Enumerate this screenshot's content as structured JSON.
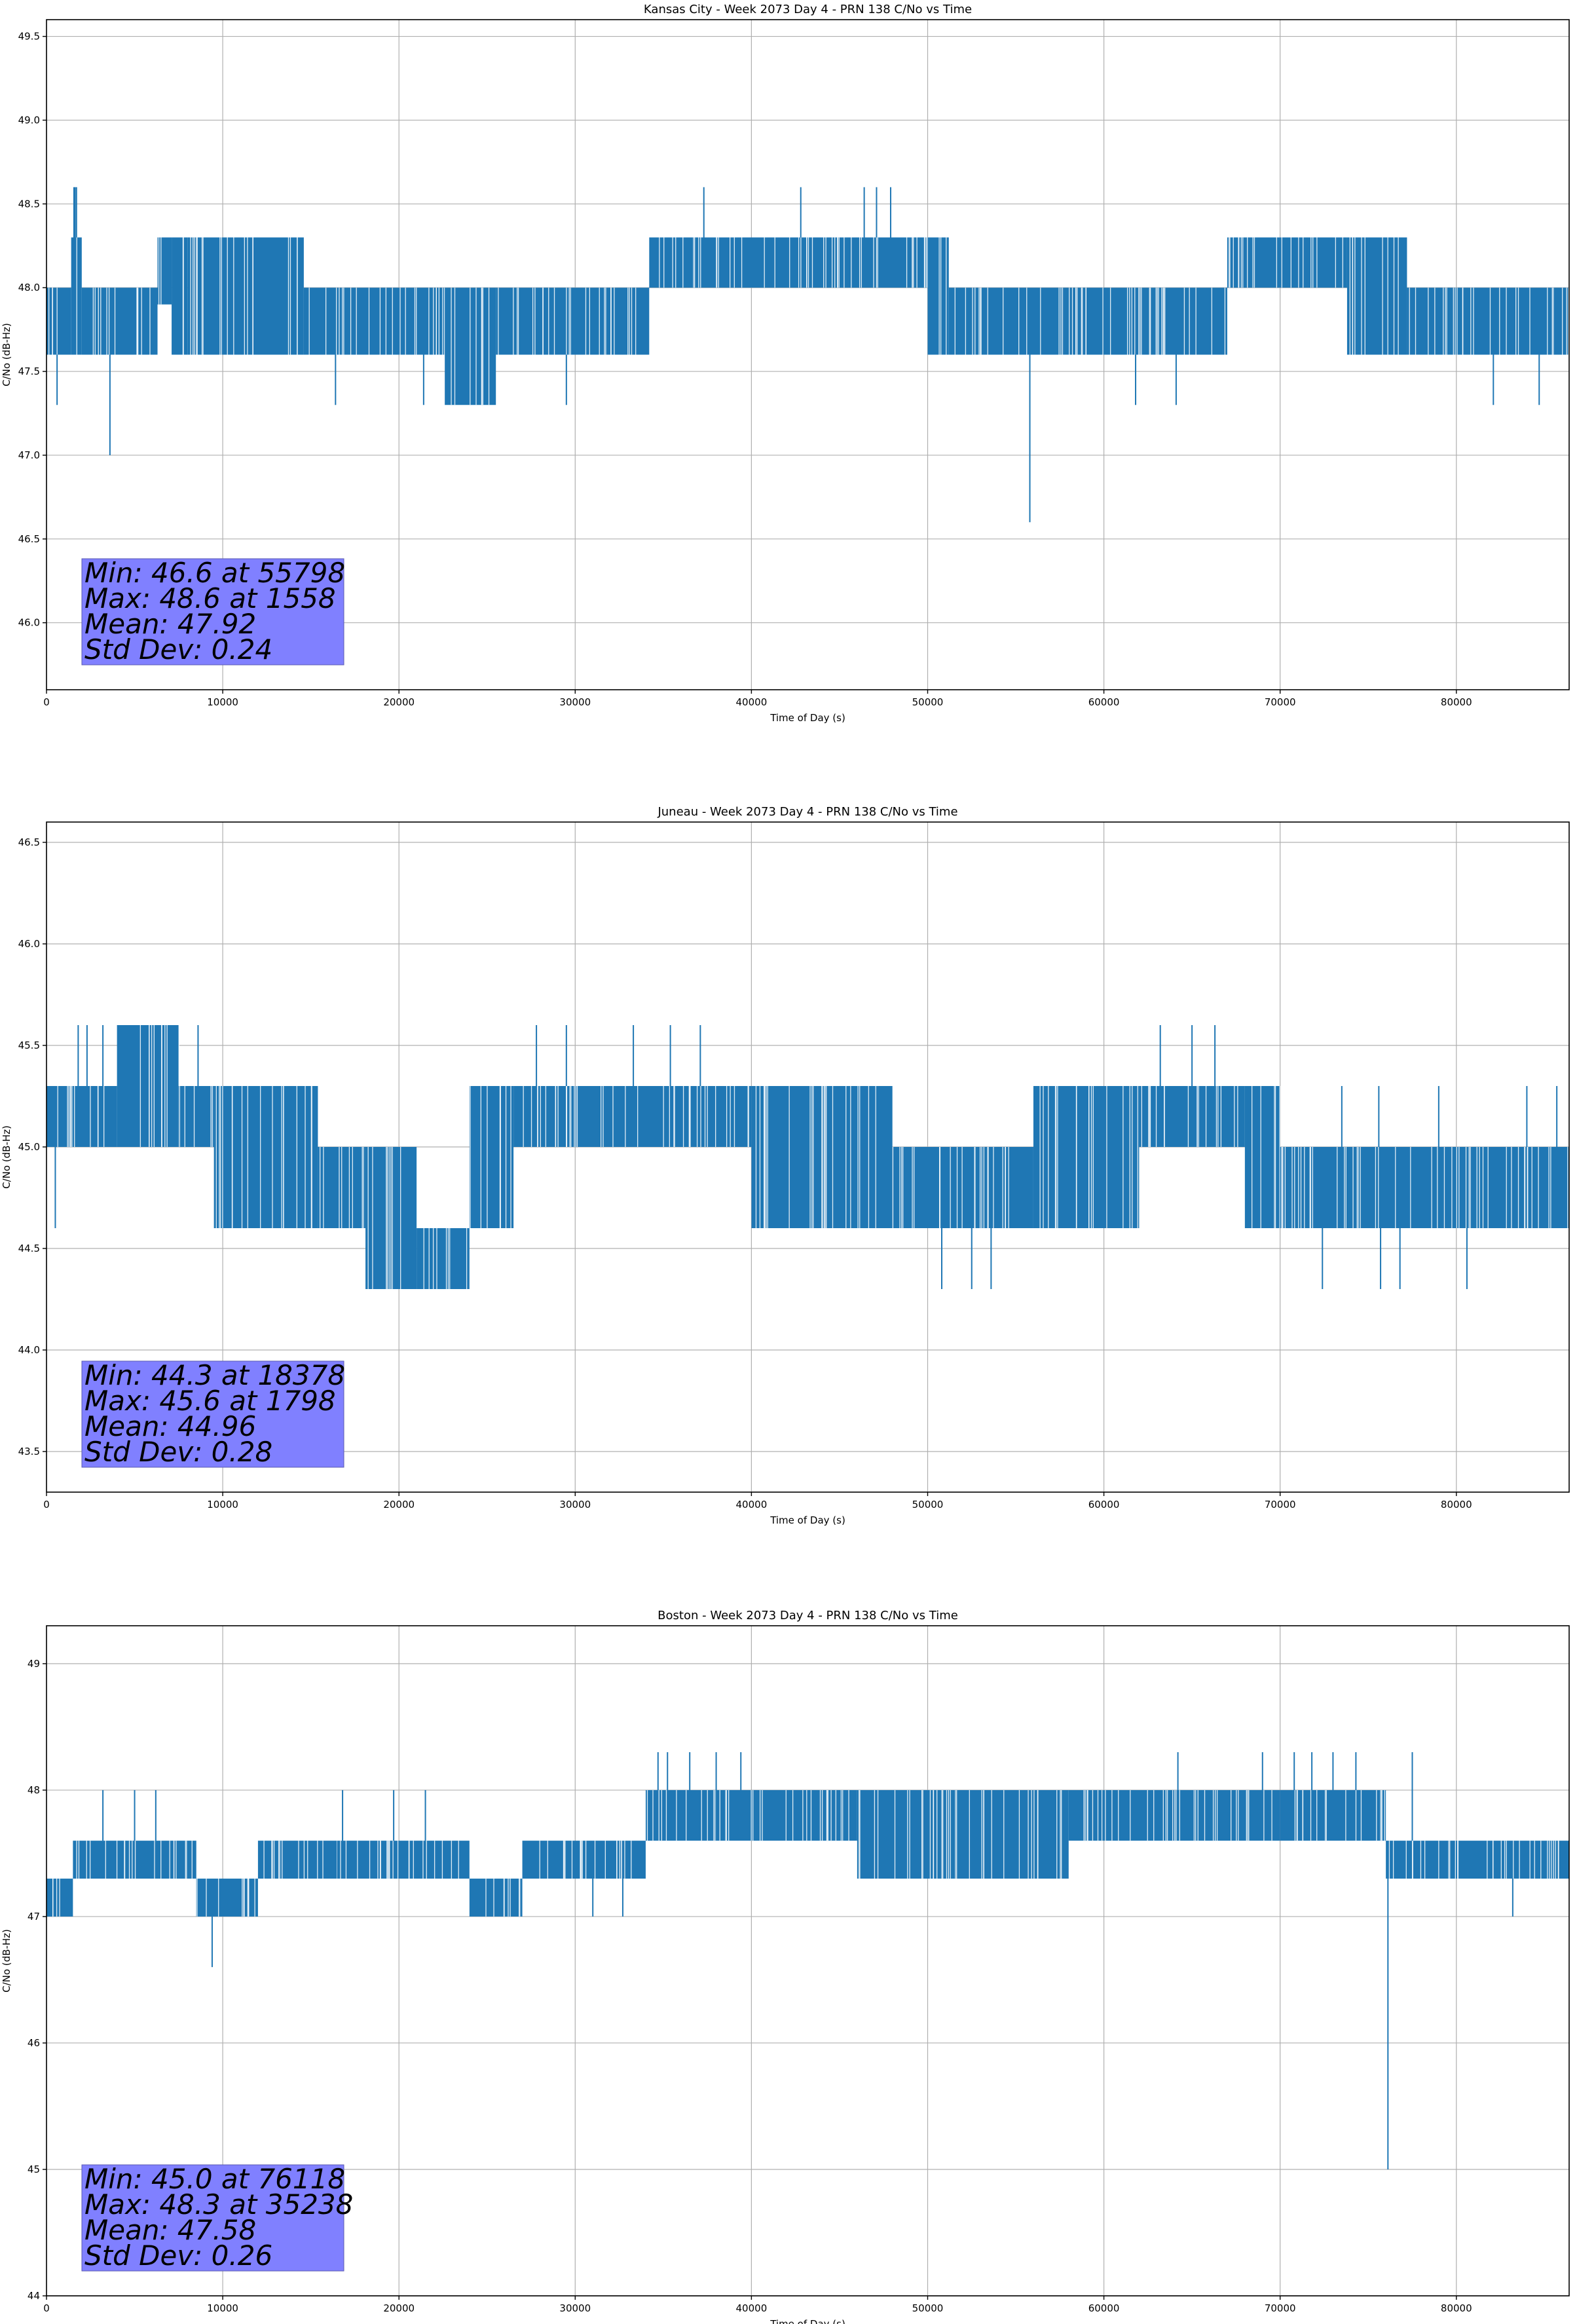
{
  "figure": {
    "background": "#ffffff",
    "line_color": "#1f77b4",
    "stats_box_color": "#8080ff"
  },
  "chart_data": [
    {
      "type": "line",
      "title": "Kansas City - Week 2073 Day 4 - PRN 138 C/No vs Time",
      "xlabel": "Time of Day (s)",
      "ylabel": "C/No (dB-Hz)",
      "xlim": [
        0,
        86400
      ],
      "ylim": [
        45.6,
        49.6
      ],
      "xticks": [
        0,
        10000,
        20000,
        30000,
        40000,
        50000,
        60000,
        70000,
        80000
      ],
      "yticks": [
        46.0,
        46.5,
        47.0,
        47.5,
        48.0,
        48.5,
        49.0,
        49.5
      ],
      "ytick_labels": [
        "46.0",
        "46.5",
        "47.0",
        "47.5",
        "48.0",
        "48.5",
        "49.0",
        "49.5"
      ],
      "grid": true,
      "band_segments": [
        [
          0,
          1400,
          47.6,
          48.0
        ],
        [
          1400,
          2000,
          47.6,
          48.3
        ],
        [
          2000,
          6300,
          47.6,
          48.0
        ],
        [
          6300,
          7100,
          47.9,
          48.3
        ],
        [
          7100,
          8000,
          47.6,
          48.3
        ],
        [
          8000,
          14600,
          47.6,
          48.3
        ],
        [
          14600,
          22600,
          47.6,
          48.0
        ],
        [
          22600,
          25500,
          47.3,
          48.0
        ],
        [
          25500,
          34200,
          47.6,
          48.0
        ],
        [
          34200,
          50000,
          48.0,
          48.3
        ],
        [
          50000,
          51200,
          47.6,
          48.3
        ],
        [
          51200,
          67000,
          47.6,
          48.0
        ],
        [
          67000,
          73800,
          48.0,
          48.3
        ],
        [
          73800,
          77200,
          47.6,
          48.3
        ],
        [
          77200,
          86400,
          47.6,
          48.0
        ]
      ],
      "spikes": [
        [
          1558,
          48.6
        ],
        [
          1620,
          48.6
        ],
        [
          1700,
          48.6
        ],
        [
          600,
          47.3
        ],
        [
          3600,
          47.0
        ],
        [
          16400,
          47.3
        ],
        [
          21400,
          47.3
        ],
        [
          23000,
          47.3
        ],
        [
          24400,
          47.3
        ],
        [
          29500,
          47.3
        ],
        [
          37300,
          48.6
        ],
        [
          42800,
          48.6
        ],
        [
          46400,
          48.6
        ],
        [
          47100,
          48.6
        ],
        [
          47900,
          48.6
        ],
        [
          55798,
          46.6
        ],
        [
          61800,
          47.3
        ],
        [
          64100,
          47.3
        ],
        [
          82100,
          47.3
        ],
        [
          84700,
          47.3
        ]
      ],
      "stats": [
        "Min: 46.6 at 55798",
        "Max: 48.6 at 1558",
        "Mean: 47.92",
        "Std Dev: 0.24"
      ]
    },
    {
      "type": "line",
      "title": "Juneau - Week 2073 Day 4 - PRN 138 C/No vs Time",
      "xlabel": "Time of Day (s)",
      "ylabel": "C/No (dB-Hz)",
      "xlim": [
        0,
        86400
      ],
      "ylim": [
        43.3,
        46.6
      ],
      "xticks": [
        0,
        10000,
        20000,
        30000,
        40000,
        50000,
        60000,
        70000,
        80000
      ],
      "yticks": [
        43.5,
        44.0,
        44.5,
        45.0,
        45.5,
        46.0,
        46.5
      ],
      "ytick_labels": [
        "43.5",
        "44.0",
        "44.5",
        "45.0",
        "45.5",
        "46.0",
        "46.5"
      ],
      "grid": true,
      "band_segments": [
        [
          0,
          4000,
          45.0,
          45.3
        ],
        [
          4000,
          7500,
          45.0,
          45.6
        ],
        [
          7500,
          9500,
          45.0,
          45.3
        ],
        [
          9500,
          15400,
          44.6,
          45.3
        ],
        [
          15400,
          18100,
          44.6,
          45.0
        ],
        [
          18100,
          21000,
          44.3,
          45.0
        ],
        [
          21000,
          24000,
          44.3,
          44.6
        ],
        [
          24000,
          26500,
          44.6,
          45.3
        ],
        [
          26500,
          40000,
          45.0,
          45.3
        ],
        [
          40000,
          48000,
          44.6,
          45.3
        ],
        [
          48000,
          56000,
          44.6,
          45.0
        ],
        [
          56000,
          62000,
          44.6,
          45.3
        ],
        [
          62000,
          68000,
          45.0,
          45.3
        ],
        [
          68000,
          70000,
          44.6,
          45.3
        ],
        [
          70000,
          86400,
          44.6,
          45.0
        ]
      ],
      "spikes": [
        [
          500,
          44.6
        ],
        [
          1798,
          45.6
        ],
        [
          2300,
          45.6
        ],
        [
          3200,
          45.6
        ],
        [
          8600,
          45.6
        ],
        [
          27800,
          45.6
        ],
        [
          29500,
          45.6
        ],
        [
          33300,
          45.6
        ],
        [
          35400,
          45.6
        ],
        [
          37100,
          45.6
        ],
        [
          19000,
          44.3
        ],
        [
          19800,
          44.3
        ],
        [
          50800,
          44.3
        ],
        [
          52500,
          44.3
        ],
        [
          53600,
          44.3
        ],
        [
          63200,
          45.6
        ],
        [
          65000,
          45.6
        ],
        [
          66300,
          45.6
        ],
        [
          72400,
          44.3
        ],
        [
          75700,
          44.3
        ],
        [
          76800,
          44.3
        ],
        [
          80600,
          44.3
        ],
        [
          73500,
          45.3
        ],
        [
          75600,
          45.3
        ],
        [
          79000,
          45.3
        ],
        [
          84000,
          45.3
        ],
        [
          85700,
          45.3
        ]
      ],
      "stats": [
        "Min: 44.3 at 18378",
        "Max: 45.6 at 1798",
        "Mean: 44.96",
        "Std Dev: 0.28"
      ]
    },
    {
      "type": "line",
      "title": "Boston - Week 2073 Day 4 - PRN 138 C/No vs Time",
      "xlabel": "Time of Day (s)",
      "ylabel": "C/No (dB-Hz)",
      "xlim": [
        0,
        86400
      ],
      "ylim": [
        44.0,
        49.3
      ],
      "xticks": [
        0,
        10000,
        20000,
        30000,
        40000,
        50000,
        60000,
        70000,
        80000
      ],
      "yticks": [
        44,
        45,
        46,
        47,
        48,
        49
      ],
      "ytick_labels": [
        "44",
        "45",
        "46",
        "47",
        "48",
        "49"
      ],
      "grid": true,
      "band_segments": [
        [
          0,
          1500,
          47.0,
          47.3
        ],
        [
          1500,
          8500,
          47.3,
          47.6
        ],
        [
          8500,
          12000,
          47.0,
          47.3
        ],
        [
          12000,
          16500,
          47.3,
          47.6
        ],
        [
          16500,
          24000,
          47.3,
          47.6
        ],
        [
          24000,
          27000,
          47.0,
          47.3
        ],
        [
          27000,
          34000,
          47.3,
          47.6
        ],
        [
          34000,
          38000,
          47.6,
          48.0
        ],
        [
          38000,
          46000,
          47.6,
          48.0
        ],
        [
          46000,
          58000,
          47.3,
          48.0
        ],
        [
          58000,
          70000,
          47.6,
          48.0
        ],
        [
          70000,
          76000,
          47.6,
          48.0
        ],
        [
          76000,
          86400,
          47.3,
          47.6
        ]
      ],
      "spikes": [
        [
          700,
          47.0
        ],
        [
          3200,
          48.0
        ],
        [
          5000,
          48.0
        ],
        [
          6200,
          48.0
        ],
        [
          9400,
          46.6
        ],
        [
          16800,
          48.0
        ],
        [
          19700,
          48.0
        ],
        [
          21500,
          48.0
        ],
        [
          26200,
          47.0
        ],
        [
          31000,
          47.0
        ],
        [
          32700,
          47.0
        ],
        [
          34700,
          48.3
        ],
        [
          35238,
          48.3
        ],
        [
          36500,
          48.3
        ],
        [
          38000,
          48.3
        ],
        [
          39400,
          48.3
        ],
        [
          48800,
          47.3
        ],
        [
          64200,
          48.3
        ],
        [
          69000,
          48.3
        ],
        [
          70800,
          48.3
        ],
        [
          71800,
          48.3
        ],
        [
          73000,
          48.3
        ],
        [
          74300,
          48.3
        ],
        [
          76118,
          45.0
        ],
        [
          77500,
          48.3
        ],
        [
          83200,
          47.0
        ]
      ],
      "stats": [
        "Min: 45.0 at 76118",
        "Max: 48.3 at 35238",
        "Mean: 47.58",
        "Std Dev: 0.26"
      ]
    }
  ]
}
